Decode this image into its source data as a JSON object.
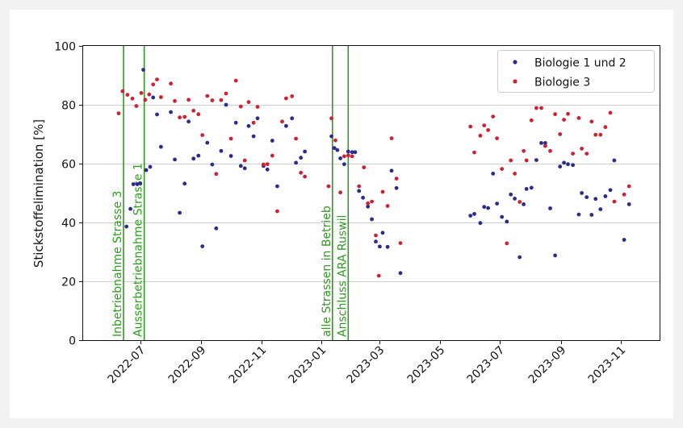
{
  "chart_data": {
    "type": "scatter",
    "title": "",
    "xlabel": "",
    "ylabel": "Stickstoffelimination [%]",
    "ylim": [
      0,
      100
    ],
    "xlim": [
      "2022-05-04",
      "2023-12-10"
    ],
    "yticks": [
      0,
      20,
      40,
      60,
      80,
      100
    ],
    "ytick_labels": [
      "0",
      "20",
      "40",
      "60",
      "80",
      "100"
    ],
    "xticks": [
      "2022-07-01",
      "2022-09-01",
      "2022-11-01",
      "2023-01-01",
      "2023-03-01",
      "2023-05-01",
      "2023-07-01",
      "2023-09-01",
      "2023-11-01"
    ],
    "xtick_labels": [
      "2022-07",
      "2022-09",
      "2022-11",
      "2023-01",
      "2023-03",
      "2023-05",
      "2023-07",
      "2023-09",
      "2023-11"
    ],
    "grid": "horizontal",
    "legend_position": "top-right",
    "events": [
      {
        "date": "2022-06-14",
        "label": "Inbetriebnahme Strasse 3"
      },
      {
        "date": "2022-07-05",
        "label": "Ausserbetriebnahme Strasse 1"
      },
      {
        "date": "2023-01-12",
        "label": "alle Strassen in Betrieb"
      },
      {
        "date": "2023-01-28",
        "label": "Anschluss ARA Ruswil"
      }
    ],
    "series": [
      {
        "name": "Biologie 1 und 2",
        "color": "#2b2b8c",
        "points": [
          [
            "2022-06-17",
            38.6
          ],
          [
            "2022-06-21",
            44.6
          ],
          [
            "2022-06-24",
            53.0
          ],
          [
            "2022-06-28",
            53.0
          ],
          [
            "2022-07-01",
            53.3
          ],
          [
            "2022-07-04",
            91.9
          ],
          [
            "2022-07-07",
            57.8
          ],
          [
            "2022-07-11",
            58.9
          ],
          [
            "2022-07-14",
            82.5
          ],
          [
            "2022-07-18",
            76.7
          ],
          [
            "2022-07-22",
            65.7
          ],
          [
            "2022-08-01",
            77.5
          ],
          [
            "2022-08-05",
            61.4
          ],
          [
            "2022-08-10",
            43.3
          ],
          [
            "2022-08-15",
            53.2
          ],
          [
            "2022-08-19",
            74.3
          ],
          [
            "2022-08-24",
            61.7
          ],
          [
            "2022-08-29",
            62.7
          ],
          [
            "2022-09-02",
            31.9
          ],
          [
            "2022-09-07",
            67.1
          ],
          [
            "2022-09-12",
            59.7
          ],
          [
            "2022-09-16",
            38.0
          ],
          [
            "2022-09-21",
            64.3
          ],
          [
            "2022-09-26",
            80.0
          ],
          [
            "2022-10-01",
            62.6
          ],
          [
            "2022-10-06",
            73.9
          ],
          [
            "2022-10-11",
            59.2
          ],
          [
            "2022-10-15",
            58.4
          ],
          [
            "2022-10-19",
            72.8
          ],
          [
            "2022-10-24",
            69.3
          ],
          [
            "2022-10-28",
            75.4
          ],
          [
            "2022-11-03",
            59.2
          ],
          [
            "2022-11-07",
            58.0
          ],
          [
            "2022-11-12",
            67.8
          ],
          [
            "2022-11-17",
            52.3
          ],
          [
            "2022-11-26",
            72.8
          ],
          [
            "2022-12-02",
            75.4
          ],
          [
            "2022-12-06",
            60.3
          ],
          [
            "2022-12-11",
            62.0
          ],
          [
            "2022-12-15",
            64.1
          ],
          [
            "2023-01-11",
            69.3
          ],
          [
            "2023-01-14",
            65.3
          ],
          [
            "2023-01-17",
            64.6
          ],
          [
            "2023-01-20",
            61.8
          ],
          [
            "2023-01-24",
            59.8
          ],
          [
            "2023-01-28",
            64.1
          ],
          [
            "2023-02-01",
            63.9
          ],
          [
            "2023-02-04",
            63.9
          ],
          [
            "2023-02-08",
            50.7
          ],
          [
            "2023-02-12",
            48.4
          ],
          [
            "2023-02-17",
            45.4
          ],
          [
            "2023-02-21",
            41.1
          ],
          [
            "2023-02-25",
            33.5
          ],
          [
            "2023-03-01",
            31.8
          ],
          [
            "2023-03-04",
            36.5
          ],
          [
            "2023-03-09",
            31.7
          ],
          [
            "2023-03-13",
            57.6
          ],
          [
            "2023-03-18",
            51.7
          ],
          [
            "2023-03-22",
            22.8
          ],
          [
            "2023-06-01",
            42.3
          ],
          [
            "2023-06-05",
            42.9
          ],
          [
            "2023-06-11",
            39.8
          ],
          [
            "2023-06-15",
            45.3
          ],
          [
            "2023-06-19",
            44.9
          ],
          [
            "2023-06-24",
            56.6
          ],
          [
            "2023-06-28",
            46.4
          ],
          [
            "2023-07-03",
            41.9
          ],
          [
            "2023-07-08",
            40.3
          ],
          [
            "2023-07-12",
            49.5
          ],
          [
            "2023-07-16",
            48.1
          ],
          [
            "2023-07-21",
            28.2
          ],
          [
            "2023-07-25",
            46.2
          ],
          [
            "2023-07-28",
            51.4
          ],
          [
            "2023-08-02",
            51.8
          ],
          [
            "2023-08-07",
            61.2
          ],
          [
            "2023-08-12",
            67.0
          ],
          [
            "2023-08-16",
            67.0
          ],
          [
            "2023-08-21",
            44.8
          ],
          [
            "2023-08-26",
            28.8
          ],
          [
            "2023-08-31",
            59.0
          ],
          [
            "2023-09-04",
            60.3
          ],
          [
            "2023-09-08",
            59.8
          ],
          [
            "2023-09-13",
            59.5
          ],
          [
            "2023-09-19",
            42.7
          ],
          [
            "2023-09-22",
            50.0
          ],
          [
            "2023-09-27",
            48.6
          ],
          [
            "2023-10-02",
            42.6
          ],
          [
            "2023-10-06",
            48.0
          ],
          [
            "2023-10-11",
            44.5
          ],
          [
            "2023-10-16",
            48.9
          ],
          [
            "2023-10-21",
            51.0
          ],
          [
            "2023-10-25",
            61.1
          ],
          [
            "2023-11-04",
            34.1
          ],
          [
            "2023-11-09",
            46.2
          ]
        ]
      },
      {
        "name": "Biologie 3",
        "color": "#cc2233",
        "points": [
          [
            "2022-06-09",
            77.1
          ],
          [
            "2022-06-13",
            84.6
          ],
          [
            "2022-06-18",
            83.4
          ],
          [
            "2022-06-23",
            82.1
          ],
          [
            "2022-06-27",
            79.6
          ],
          [
            "2022-07-02",
            84.0
          ],
          [
            "2022-07-06",
            81.7
          ],
          [
            "2022-07-10",
            83.5
          ],
          [
            "2022-07-14",
            86.9
          ],
          [
            "2022-07-18",
            88.6
          ],
          [
            "2022-07-22",
            82.6
          ],
          [
            "2022-08-01",
            87.2
          ],
          [
            "2022-08-05",
            81.3
          ],
          [
            "2022-08-10",
            75.7
          ],
          [
            "2022-08-15",
            75.9
          ],
          [
            "2022-08-19",
            81.7
          ],
          [
            "2022-08-24",
            78.0
          ],
          [
            "2022-08-29",
            76.8
          ],
          [
            "2022-09-02",
            69.7
          ],
          [
            "2022-09-07",
            83.0
          ],
          [
            "2022-09-12",
            81.5
          ],
          [
            "2022-09-16",
            56.5
          ],
          [
            "2022-09-21",
            81.6
          ],
          [
            "2022-09-26",
            83.8
          ],
          [
            "2022-10-01",
            68.5
          ],
          [
            "2022-10-06",
            88.2
          ],
          [
            "2022-10-11",
            79.4
          ],
          [
            "2022-10-15",
            61.1
          ],
          [
            "2022-10-19",
            80.9
          ],
          [
            "2022-10-24",
            73.9
          ],
          [
            "2022-10-28",
            79.3
          ],
          [
            "2022-11-03",
            59.7
          ],
          [
            "2022-11-07",
            59.8
          ],
          [
            "2022-11-12",
            62.7
          ],
          [
            "2022-11-17",
            43.8
          ],
          [
            "2022-11-22",
            74.3
          ],
          [
            "2022-11-26",
            82.2
          ],
          [
            "2022-12-02",
            82.9
          ],
          [
            "2022-12-06",
            68.5
          ],
          [
            "2022-12-11",
            56.9
          ],
          [
            "2022-12-15",
            55.6
          ],
          [
            "2023-01-08",
            52.3
          ],
          [
            "2023-01-11",
            75.4
          ],
          [
            "2023-01-15",
            67.9
          ],
          [
            "2023-01-20",
            50.2
          ],
          [
            "2023-01-24",
            62.5
          ],
          [
            "2023-01-28",
            62.8
          ],
          [
            "2023-02-01",
            62.5
          ],
          [
            "2023-02-08",
            52.3
          ],
          [
            "2023-02-13",
            58.7
          ],
          [
            "2023-02-17",
            46.5
          ],
          [
            "2023-02-21",
            47.1
          ],
          [
            "2023-02-25",
            35.6
          ],
          [
            "2023-02-28",
            21.9
          ],
          [
            "2023-03-04",
            50.4
          ],
          [
            "2023-03-09",
            45.6
          ],
          [
            "2023-03-13",
            68.6
          ],
          [
            "2023-03-18",
            54.9
          ],
          [
            "2023-03-22",
            33.0
          ],
          [
            "2023-06-01",
            72.6
          ],
          [
            "2023-06-05",
            63.8
          ],
          [
            "2023-06-11",
            69.5
          ],
          [
            "2023-06-15",
            73.0
          ],
          [
            "2023-06-19",
            71.4
          ],
          [
            "2023-06-24",
            76.0
          ],
          [
            "2023-06-28",
            68.6
          ],
          [
            "2023-07-03",
            58.2
          ],
          [
            "2023-07-08",
            32.9
          ],
          [
            "2023-07-12",
            61.1
          ],
          [
            "2023-07-16",
            56.6
          ],
          [
            "2023-07-21",
            47.0
          ],
          [
            "2023-07-25",
            64.3
          ],
          [
            "2023-07-28",
            61.1
          ],
          [
            "2023-08-02",
            74.7
          ],
          [
            "2023-08-07",
            78.9
          ],
          [
            "2023-08-12",
            78.9
          ],
          [
            "2023-08-16",
            66.0
          ],
          [
            "2023-08-21",
            64.3
          ],
          [
            "2023-08-26",
            76.8
          ],
          [
            "2023-08-31",
            70.0
          ],
          [
            "2023-09-04",
            74.9
          ],
          [
            "2023-09-08",
            76.9
          ],
          [
            "2023-09-13",
            63.4
          ],
          [
            "2023-09-19",
            75.5
          ],
          [
            "2023-09-22",
            65.1
          ],
          [
            "2023-09-27",
            63.4
          ],
          [
            "2023-10-02",
            74.3
          ],
          [
            "2023-10-06",
            69.8
          ],
          [
            "2023-10-11",
            69.8
          ],
          [
            "2023-10-16",
            72.4
          ],
          [
            "2023-10-21",
            77.3
          ],
          [
            "2023-10-25",
            47.1
          ],
          [
            "2023-11-04",
            49.5
          ],
          [
            "2023-11-09",
            52.3
          ]
        ]
      }
    ]
  }
}
